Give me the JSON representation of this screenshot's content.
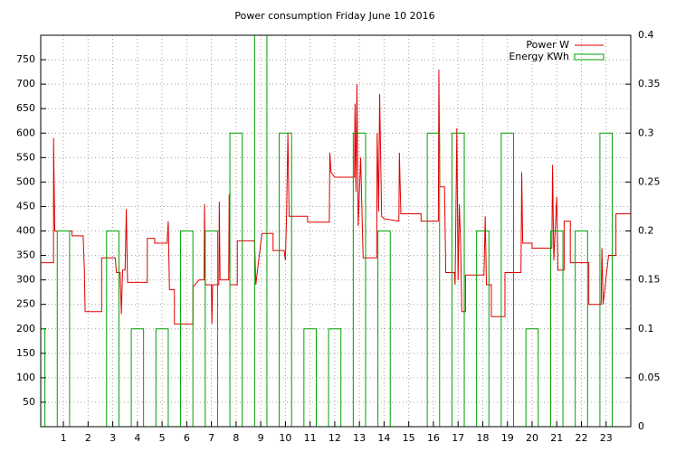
{
  "chart_data": {
    "type": "line",
    "title": "Power consumption Friday June 10 2016",
    "xlim": [
      0.08,
      24
    ],
    "xticks": [
      1,
      2,
      3,
      4,
      5,
      6,
      7,
      8,
      9,
      10,
      11,
      12,
      13,
      14,
      15,
      16,
      17,
      18,
      19,
      20,
      21,
      22,
      23
    ],
    "ylim": [
      0,
      800
    ],
    "yticks": [
      50,
      100,
      150,
      200,
      250,
      300,
      350,
      400,
      450,
      500,
      550,
      600,
      650,
      700,
      750
    ],
    "y2lim": [
      0,
      0.4
    ],
    "y2ticks": [
      0,
      0.05,
      0.1,
      0.15,
      0.2,
      0.25,
      0.3,
      0.35,
      0.4
    ],
    "grid": true,
    "legend": "top-right",
    "series": [
      {
        "name": "Power W",
        "color": "#e00000",
        "x": [
          0.08,
          0.6,
          0.6,
          0.65,
          1.35,
          1.35,
          1.8,
          1.85,
          1.88,
          2.55,
          2.55,
          3.1,
          3.15,
          3.3,
          3.35,
          3.4,
          3.5,
          3.55,
          3.6,
          4.4,
          4.4,
          4.7,
          4.7,
          5.2,
          5.25,
          5.3,
          5.5,
          5.5,
          6.25,
          6.25,
          6.5,
          6.7,
          6.72,
          6.75,
          7.0,
          7.02,
          7.05,
          7.3,
          7.32,
          7.35,
          7.7,
          7.72,
          7.75,
          8.05,
          8.05,
          8.75,
          8.8,
          9.0,
          9.05,
          9.5,
          9.5,
          9.95,
          10.0,
          10.05,
          10.1,
          10.15,
          10.9,
          10.9,
          11.78,
          11.8,
          11.85,
          12.0,
          12.8,
          12.82,
          12.86,
          12.9,
          12.95,
          13.05,
          13.15,
          13.7,
          13.72,
          13.78,
          13.82,
          13.9,
          14.0,
          14.6,
          14.62,
          14.68,
          15.5,
          15.5,
          16.2,
          16.22,
          16.26,
          16.45,
          16.5,
          16.85,
          16.88,
          16.95,
          17.0,
          17.05,
          17.1,
          17.15,
          17.3,
          17.3,
          18.05,
          18.1,
          18.15,
          18.35,
          18.35,
          18.9,
          18.9,
          19.55,
          19.58,
          19.62,
          20.0,
          20.0,
          20.8,
          20.83,
          20.88,
          21.0,
          21.05,
          21.3,
          21.3,
          21.55,
          21.55,
          22.3,
          22.3,
          22.8,
          22.83,
          22.88,
          23.1,
          23.4,
          23.4,
          24.0
        ],
        "values": [
          335,
          335,
          590,
          400,
          400,
          390,
          390,
          320,
          235,
          235,
          345,
          345,
          315,
          315,
          230,
          320,
          320,
          445,
          295,
          295,
          385,
          385,
          375,
          375,
          420,
          280,
          280,
          210,
          210,
          285,
          300,
          300,
          455,
          290,
          290,
          210,
          290,
          290,
          460,
          300,
          300,
          475,
          290,
          290,
          380,
          380,
          290,
          375,
          395,
          395,
          360,
          360,
          340,
          440,
          600,
          430,
          430,
          418,
          418,
          560,
          520,
          510,
          510,
          660,
          480,
          700,
          410,
          550,
          345,
          345,
          600,
          440,
          680,
          430,
          425,
          420,
          560,
          435,
          435,
          420,
          420,
          730,
          490,
          490,
          315,
          315,
          290,
          610,
          300,
          455,
          380,
          235,
          235,
          310,
          310,
          430,
          290,
          290,
          225,
          225,
          315,
          315,
          520,
          375,
          375,
          365,
          365,
          535,
          340,
          470,
          320,
          320,
          420,
          420,
          335,
          335,
          250,
          250,
          365,
          250,
          350,
          350,
          435,
          435
        ]
      },
      {
        "name": "Energy KWh",
        "color": "#00a000",
        "type": "bar",
        "axis": "y2",
        "x": [
          0,
          1,
          2,
          3,
          4,
          5,
          6,
          7,
          8,
          9,
          10,
          11,
          12,
          13,
          14,
          15,
          16,
          17,
          18,
          19,
          20,
          21,
          22,
          23
        ],
        "values": [
          0.1,
          0.2,
          0,
          0.2,
          0.1,
          0.1,
          0.2,
          0.2,
          0.3,
          0.4,
          0.3,
          0.1,
          0.1,
          0.3,
          0.2,
          0,
          0.3,
          0.3,
          0.2,
          0.3,
          0.1,
          0.2,
          0.2,
          0.3
        ]
      }
    ]
  }
}
